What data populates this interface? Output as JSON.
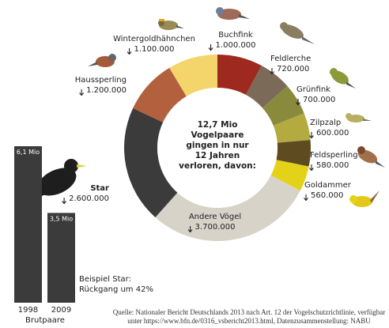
{
  "chart_data": [
    {
      "type": "donut",
      "center_lines": [
        "12,7 Mio",
        "Vogelpaare",
        "gingen in nur",
        "12 Jahren",
        "verloren, davon:"
      ],
      "categories": [
        "Buchfink",
        "Feldlerche",
        "Grünfink",
        "Zilpzalp",
        "Feldsperling",
        "Goldammer",
        "Andere Vögel",
        "Star",
        "Haussperling",
        "Wintergoldhähnchen"
      ],
      "values": [
        1000000,
        720000,
        700000,
        600000,
        580000,
        560000,
        3700000,
        2600000,
        1200000,
        1100000
      ],
      "value_labels": [
        "1.000.000",
        "720.000",
        "700.000",
        "600.000",
        "580.000",
        "560.000",
        "3.700.000",
        "2.600.000",
        "1.200.000",
        "1.100.000"
      ],
      "colors": [
        "#9e2a1f",
        "#7b6a57",
        "#8a8a3c",
        "#b3aa40",
        "#5e4b1f",
        "#e3d218",
        "#d8d3c8",
        "#3b3b3b",
        "#b3603f",
        "#f4d56b"
      ]
    },
    {
      "type": "bar",
      "categories": [
        "1998",
        "2009"
      ],
      "values": [
        6.1,
        3.5
      ],
      "value_labels": [
        "6,1 Mio",
        "3,5 Mio"
      ],
      "color": "#3b3b3b",
      "axis_label": "Brutpaare",
      "caption": [
        "Beispiel Star:",
        "Rückgang um 42%"
      ]
    }
  ],
  "source": [
    "Quelle: Nationaler Bericht Deutschlands 2013 nach Art. 12 der Vogelschutzrichtlinie, verfügbar",
    "unter https://www.bfn.de/0316_vsbericht2013.html, Datenzusammenstellung: NABU"
  ]
}
